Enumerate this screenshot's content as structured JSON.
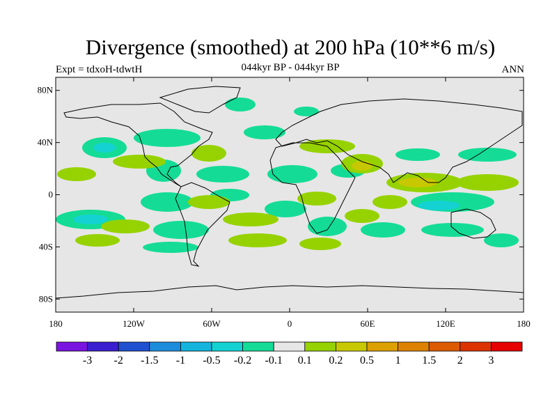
{
  "header": {
    "title": "Divergence (smoothed) at 200 hPa (10**6 m/s)",
    "subtitle": "044kyr BP - 044kyr BP",
    "left_label": "Expt = tdxoH-tdwtH",
    "right_label": "ANN"
  },
  "map": {
    "projection": "cylindrical-equidistant",
    "background_color": "#e6e6e6",
    "lat_ticks": [
      {
        "value": 80,
        "label": "80N"
      },
      {
        "value": 40,
        "label": "40N"
      },
      {
        "value": 0,
        "label": "0"
      },
      {
        "value": -40,
        "label": "40S"
      },
      {
        "value": -80,
        "label": "80S"
      }
    ],
    "lon_ticks": [
      {
        "value": -180,
        "label": "180"
      },
      {
        "value": -120,
        "label": "120W"
      },
      {
        "value": -60,
        "label": "60W"
      },
      {
        "value": 0,
        "label": "0"
      },
      {
        "value": 60,
        "label": "60E"
      },
      {
        "value": 120,
        "label": "120E"
      },
      {
        "value": 180,
        "label": "180"
      }
    ]
  },
  "colorbar": {
    "colors": [
      "#7a14e0",
      "#3a1ed0",
      "#1e50d0",
      "#1e8cdc",
      "#14b4dc",
      "#14d2d2",
      "#14dc96",
      "#e6e6e6",
      "#96d200",
      "#c8c800",
      "#dca000",
      "#dc8200",
      "#dc5a00",
      "#dc3200",
      "#e60000"
    ],
    "labels": [
      "-3",
      "-2",
      "-1.5",
      "-1",
      "-0.5",
      "-0.2",
      "-0.1",
      "0.1",
      "0.2",
      "0.5",
      "1",
      "1.5",
      "2",
      "3"
    ]
  }
}
